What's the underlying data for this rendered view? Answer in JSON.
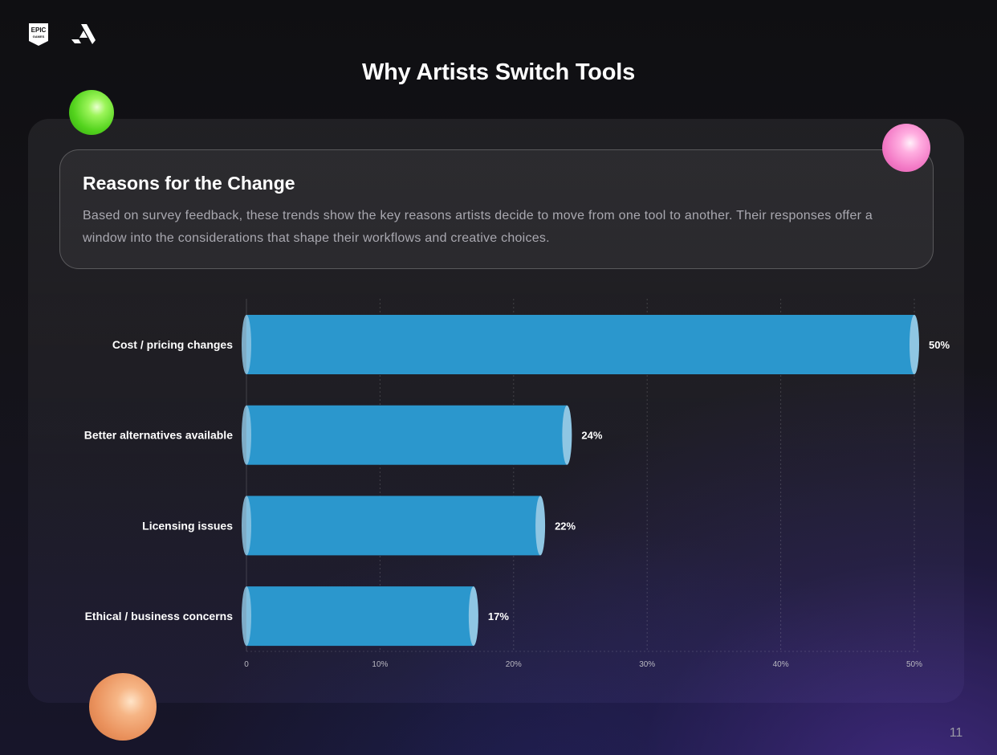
{
  "page": {
    "title": "Why Artists Switch Tools",
    "page_number": "11"
  },
  "logos": {
    "left": "epic-games-logo",
    "right": "artstation-logo"
  },
  "card": {
    "heading": "Reasons for the Change",
    "body": "Based on survey feedback, these trends show the key reasons artists decide to move from one tool to another. Their responses offer a window into the considerations that shape their workflows and creative choices."
  },
  "colors": {
    "bar": "#2b97cd",
    "bar_cap": "#8fc6e3",
    "accent_green": "#53d31d",
    "accent_pink": "#f37ac6",
    "accent_orange": "#ea925d"
  },
  "chart_data": {
    "type": "bar",
    "orientation": "horizontal",
    "categories": [
      "Cost / pricing changes",
      "Better alternatives available",
      "Licensing issues",
      "Ethical / business concerns"
    ],
    "values": [
      50,
      24,
      22,
      17
    ],
    "value_labels": [
      "50%",
      "24%",
      "22%",
      "17%"
    ],
    "x_ticks": [
      0,
      10,
      20,
      30,
      40,
      50
    ],
    "x_tick_labels": [
      "0",
      "10%",
      "20%",
      "30%",
      "40%",
      "50%"
    ],
    "xlim": [
      0,
      50
    ],
    "grid": true,
    "legend": "none"
  }
}
